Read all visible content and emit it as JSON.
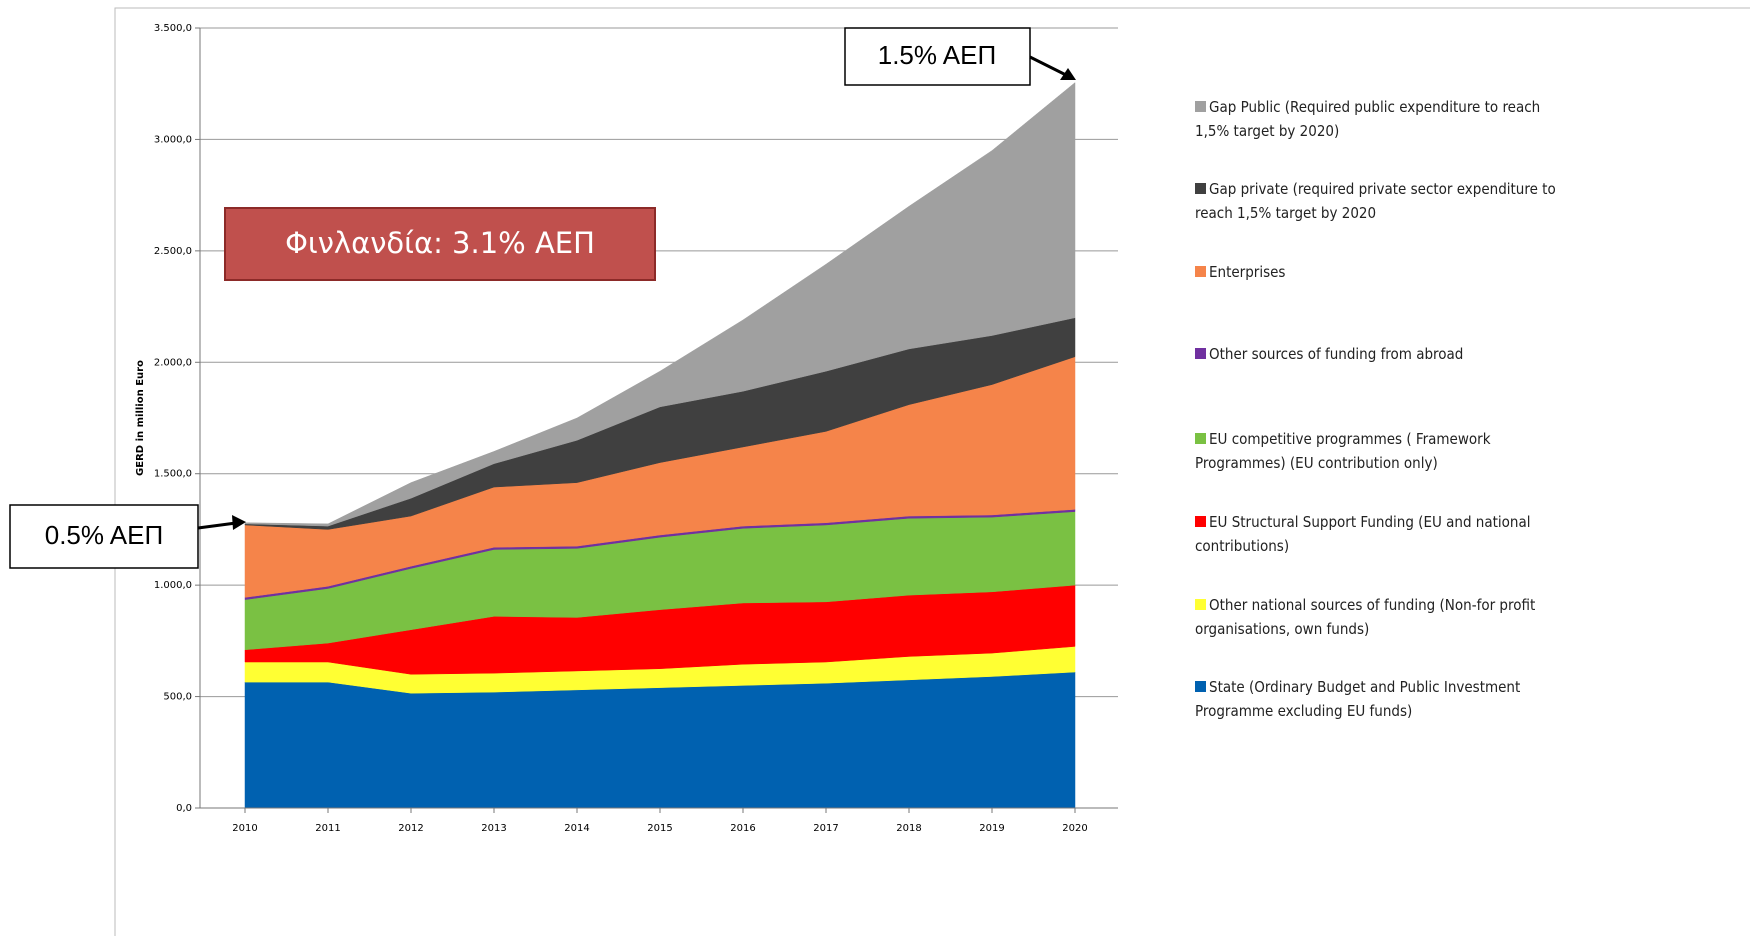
{
  "chart_data": {
    "type": "stacked_area",
    "y_axis_label": "GERD in million Euro",
    "categories": [
      "2010",
      "2011",
      "2012",
      "2013",
      "2014",
      "2015",
      "2016",
      "2017",
      "2018",
      "2019",
      "2020"
    ],
    "series": [
      {
        "name": "State (Ordinary Budget and Public Investment Programme excluding EU funds)",
        "color": "#0061b0",
        "values": [
          565,
          565,
          515,
          520,
          530,
          540,
          550,
          560,
          575,
          590,
          610
        ]
      },
      {
        "name": "Other national sources of funding (Non-for profit organisations, own funds)",
        "color": "#ffff33",
        "values": [
          90,
          90,
          85,
          85,
          85,
          85,
          95,
          95,
          105,
          105,
          115
        ]
      },
      {
        "name": "EU Structural Support Funding (EU and national contributions)",
        "color": "#ff0000",
        "values": [
          55,
          85,
          200,
          255,
          240,
          265,
          275,
          270,
          275,
          275,
          275
        ]
      },
      {
        "name": "EU competitive programmes ( Framework Programmes) (EU contribution only)",
        "color": "#7ac143",
        "values": [
          225,
          245,
          275,
          300,
          310,
          325,
          335,
          345,
          345,
          335,
          330
        ]
      },
      {
        "name": "Other sources of funding from abroad",
        "color": "#7030a0",
        "values": [
          10,
          10,
          10,
          10,
          10,
          10,
          10,
          10,
          10,
          10,
          10
        ]
      },
      {
        "name": "Enterprises",
        "color": "#f5844a",
        "values": [
          325,
          255,
          225,
          270,
          285,
          325,
          355,
          410,
          500,
          585,
          685
        ]
      },
      {
        "name": "Gap private (required private sector expenditure to reach 1,5% target by 2020",
        "color": "#404040",
        "values": [
          5,
          15,
          80,
          105,
          190,
          250,
          250,
          270,
          250,
          220,
          175
        ]
      },
      {
        "name": "Gap Public (Required public expenditure to reach 1,5% target by 2020)",
        "color": "#a0a0a0",
        "values": [
          5,
          10,
          70,
          55,
          100,
          160,
          320,
          480,
          640,
          830,
          1055
        ]
      }
    ],
    "ylim": [
      0,
      3500
    ],
    "yticks": [
      {
        "value": 0,
        "label": "0,0"
      },
      {
        "value": 500,
        "label": "500,0"
      },
      {
        "value": 1000,
        "label": "1.000,0"
      },
      {
        "value": 1500,
        "label": "1.500,0"
      },
      {
        "value": 2000,
        "label": "2.000,0"
      },
      {
        "value": 2500,
        "label": "2.500,0"
      },
      {
        "value": 3000,
        "label": "3.000,0"
      },
      {
        "value": 3500,
        "label": "3.500,0"
      }
    ],
    "grid": true,
    "annotations": [
      "1.5% ΑΕΠ",
      "Φινλανδία: 3.1% ΑΕΠ",
      "0.5% ΑΕΠ"
    ]
  }
}
